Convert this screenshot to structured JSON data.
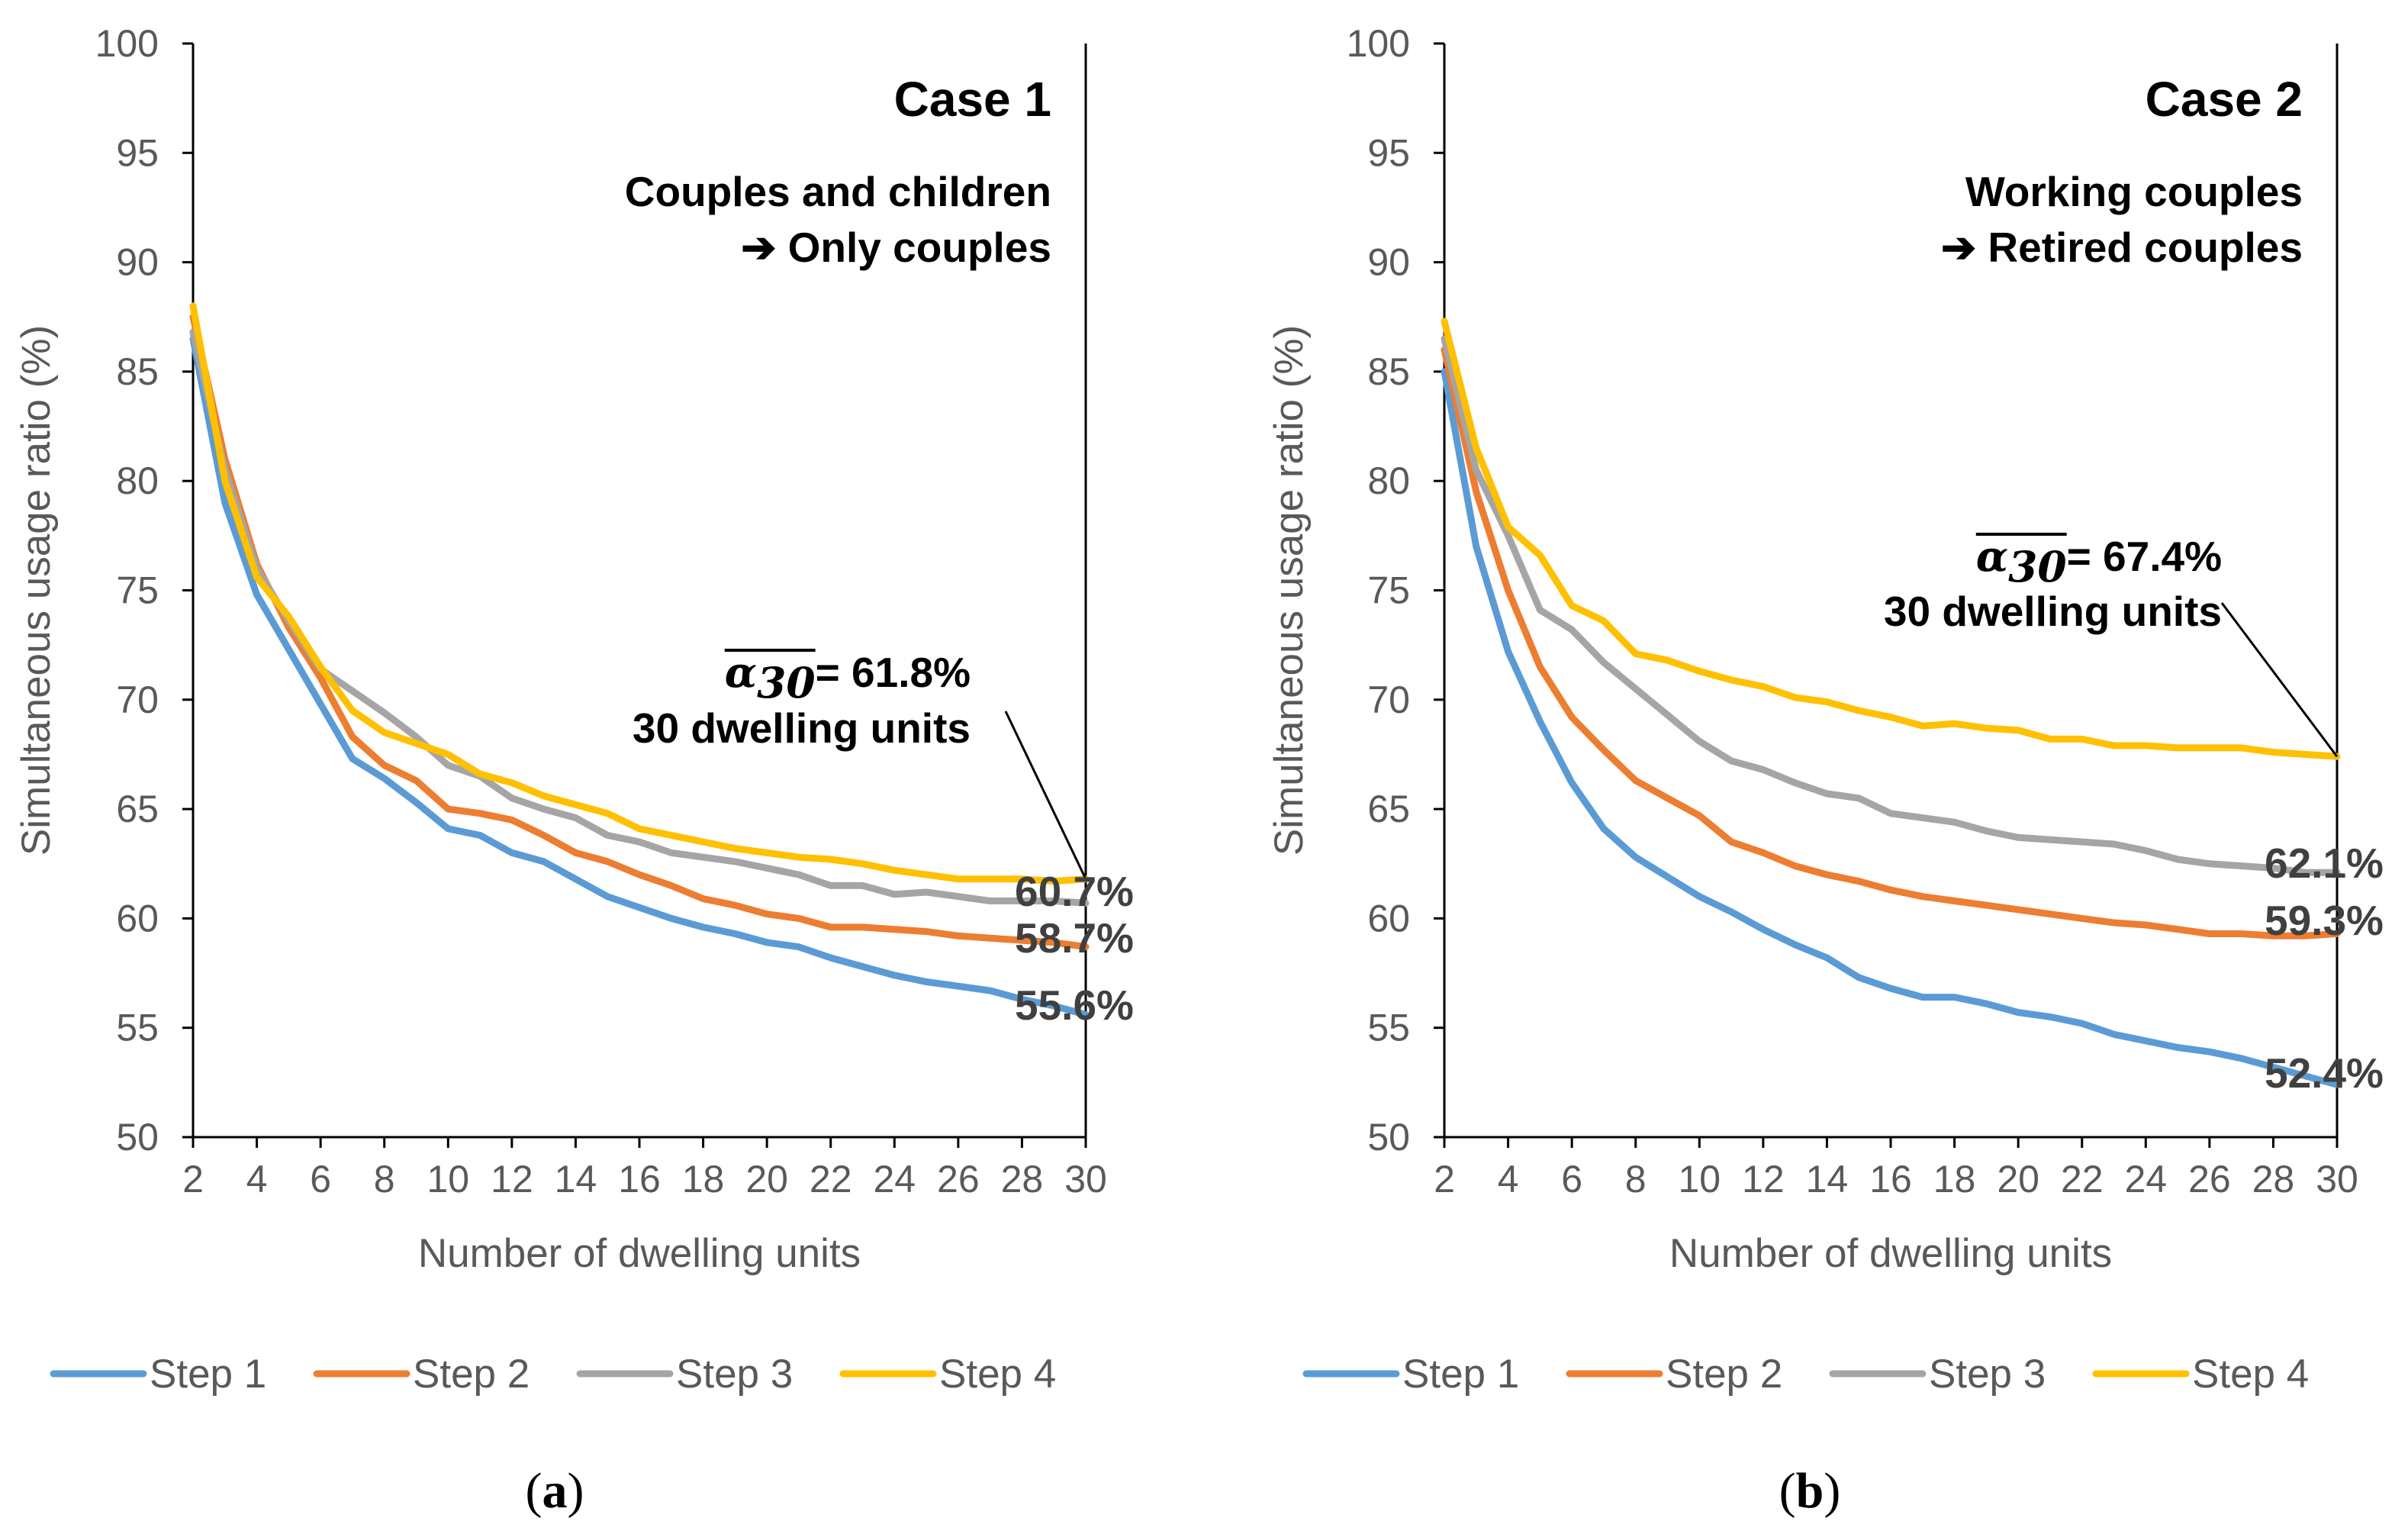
{
  "colors": {
    "Step 1": "#5B9BD5",
    "Step 2": "#ED7D31",
    "Step 3": "#A5A5A5",
    "Step 4": "#FFC000"
  },
  "chart_data": [
    {
      "type": "line",
      "panel_label": "a",
      "title": "Case 1",
      "subtitle_lines": [
        "Couples and children",
        "➔ Only couples"
      ],
      "xlabel": "Number of dwelling units",
      "ylabel": "Simultaneous usage ratio (%)",
      "xlim": [
        2,
        30
      ],
      "ylim": [
        50,
        100
      ],
      "xticks": [
        2,
        4,
        6,
        8,
        10,
        12,
        14,
        16,
        18,
        20,
        22,
        24,
        26,
        28,
        30
      ],
      "yticks": [
        50,
        55,
        60,
        65,
        70,
        75,
        80,
        85,
        90,
        95,
        100
      ],
      "legend_position": "bottom",
      "annotation": {
        "alpha_symbol": "α",
        "alpha_subscript": "30",
        "value_text": "= 61.8%",
        "line2": "30 dwelling units",
        "target_x": 30,
        "target_y": 61.8
      },
      "end_labels": [
        {
          "text": "60.7%",
          "series": "Step 3"
        },
        {
          "text": "58.7%",
          "series": "Step 2"
        },
        {
          "text": "55.6%",
          "series": "Step 1"
        }
      ],
      "x": [
        2,
        3,
        4,
        5,
        6,
        7,
        8,
        9,
        10,
        11,
        12,
        13,
        14,
        15,
        16,
        17,
        18,
        19,
        20,
        21,
        22,
        23,
        24,
        25,
        26,
        27,
        28,
        29,
        30
      ],
      "series": [
        {
          "name": "Step 1",
          "values": [
            86.5,
            79,
            74.8,
            72.3,
            69.8,
            67.3,
            66.4,
            65.3,
            64.1,
            63.8,
            63,
            62.6,
            61.8,
            61,
            60.5,
            60,
            59.6,
            59.3,
            58.9,
            58.7,
            58.2,
            57.8,
            57.4,
            57.1,
            56.9,
            56.7,
            56.3,
            56,
            55.6
          ]
        },
        {
          "name": "Step 2",
          "values": [
            87.5,
            81,
            76.2,
            73.3,
            71,
            68.3,
            67,
            66.3,
            65,
            64.8,
            64.5,
            63.8,
            63,
            62.6,
            62,
            61.5,
            60.9,
            60.6,
            60.2,
            60,
            59.6,
            59.6,
            59.5,
            59.4,
            59.2,
            59.1,
            59,
            58.9,
            58.7
          ]
        },
        {
          "name": "Step 3",
          "values": [
            86.8,
            80.5,
            76,
            73.6,
            71.4,
            70.4,
            69.4,
            68.3,
            67,
            66.5,
            65.5,
            65,
            64.6,
            63.8,
            63.5,
            63,
            62.8,
            62.6,
            62.3,
            62,
            61.5,
            61.5,
            61.1,
            61.2,
            61,
            60.8,
            60.8,
            60.8,
            60.7
          ]
        },
        {
          "name": "Step 4",
          "values": [
            88,
            80,
            75.6,
            73.8,
            71.5,
            69.5,
            68.5,
            68,
            67.5,
            66.6,
            66.2,
            65.6,
            65.2,
            64.8,
            64.1,
            63.8,
            63.5,
            63.2,
            63,
            62.8,
            62.7,
            62.5,
            62.2,
            62,
            61.8,
            61.8,
            61.8,
            61.7,
            61.8
          ]
        }
      ]
    },
    {
      "type": "line",
      "panel_label": "b",
      "title": "Case 2",
      "subtitle_lines": [
        "Working couples",
        "➔ Retired couples"
      ],
      "xlabel": "Number of dwelling units",
      "ylabel": "Simultaneous usage ratio (%)",
      "xlim": [
        2,
        30
      ],
      "ylim": [
        50,
        100
      ],
      "xticks": [
        2,
        4,
        6,
        8,
        10,
        12,
        14,
        16,
        18,
        20,
        22,
        24,
        26,
        28,
        30
      ],
      "yticks": [
        50,
        55,
        60,
        65,
        70,
        75,
        80,
        85,
        90,
        95,
        100
      ],
      "legend_position": "bottom",
      "annotation": {
        "alpha_symbol": "α",
        "alpha_subscript": "30",
        "value_text": "= 67.4%",
        "line2": "30 dwelling units",
        "target_x": 30,
        "target_y": 67.4
      },
      "end_labels": [
        {
          "text": "62.1%",
          "series": "Step 3"
        },
        {
          "text": "59.3%",
          "series": "Step 2"
        },
        {
          "text": "52.4%",
          "series": "Step 1"
        }
      ],
      "x": [
        2,
        3,
        4,
        5,
        6,
        7,
        8,
        9,
        10,
        11,
        12,
        13,
        14,
        15,
        16,
        17,
        18,
        19,
        20,
        21,
        22,
        23,
        24,
        25,
        26,
        27,
        28,
        29,
        30
      ],
      "series": [
        {
          "name": "Step 1",
          "values": [
            85,
            77,
            72.2,
            69,
            66.2,
            64.1,
            62.8,
            61.9,
            61,
            60.3,
            59.5,
            58.8,
            58.2,
            57.3,
            56.8,
            56.4,
            56.4,
            56.1,
            55.7,
            55.5,
            55.2,
            54.7,
            54.4,
            54.1,
            53.9,
            53.6,
            53.2,
            52.8,
            52.4
          ]
        },
        {
          "name": "Step 2",
          "values": [
            86,
            79.5,
            75,
            71.5,
            69.2,
            67.7,
            66.3,
            65.5,
            64.7,
            63.5,
            63,
            62.4,
            62,
            61.7,
            61.3,
            61,
            60.8,
            60.6,
            60.4,
            60.2,
            60,
            59.8,
            59.7,
            59.5,
            59.3,
            59.3,
            59.2,
            59.2,
            59.3
          ]
        },
        {
          "name": "Step 3",
          "values": [
            86.5,
            80.5,
            77.5,
            74.1,
            73.2,
            71.7,
            70.5,
            69.3,
            68.1,
            67.2,
            66.8,
            66.2,
            65.7,
            65.5,
            64.8,
            64.6,
            64.4,
            64,
            63.7,
            63.6,
            63.5,
            63.4,
            63.1,
            62.7,
            62.5,
            62.4,
            62.3,
            62.1,
            62.1
          ]
        },
        {
          "name": "Step 4",
          "values": [
            87.3,
            81.5,
            77.9,
            76.6,
            74.3,
            73.6,
            72.1,
            71.8,
            71.3,
            70.9,
            70.6,
            70.1,
            69.9,
            69.5,
            69.2,
            68.8,
            68.9,
            68.7,
            68.6,
            68.2,
            68.2,
            67.9,
            67.9,
            67.8,
            67.8,
            67.8,
            67.6,
            67.5,
            67.4
          ]
        }
      ]
    }
  ]
}
